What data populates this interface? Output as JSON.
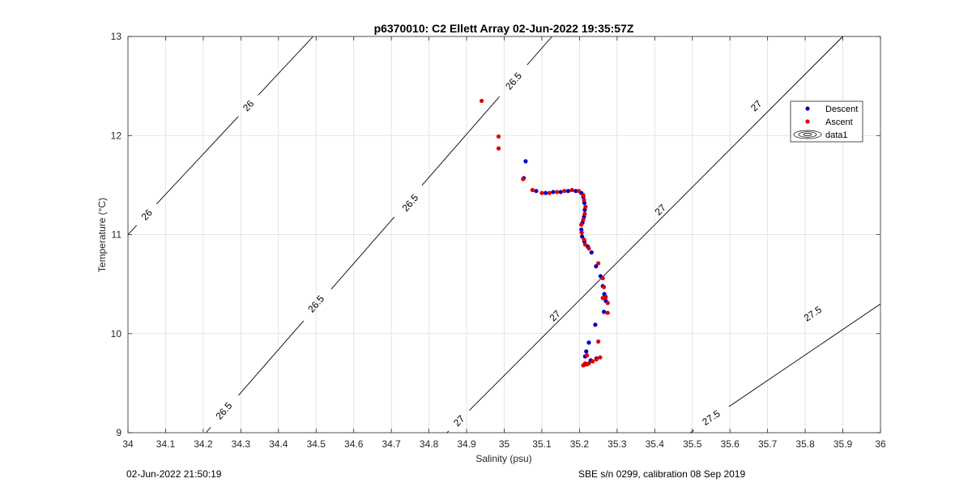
{
  "footer": {
    "left": "02-Jun-2022 21:50:19",
    "right": "SBE s/n 0299, calibration 08 Sep 2019"
  },
  "chart_data": {
    "type": "scatter",
    "title": "p6370010: C2 Ellett Array 02-Jun-2022 19:35:57Z",
    "xlabel": "Salinity (psu)",
    "ylabel": "Temperature (°C)",
    "xlim": [
      34,
      36
    ],
    "ylim": [
      9,
      13
    ],
    "xticks": [
      "34",
      "34.1",
      "34.2",
      "34.3",
      "34.4",
      "34.5",
      "34.6",
      "34.7",
      "34.8",
      "34.9",
      "35",
      "35.1",
      "35.2",
      "35.3",
      "35.4",
      "35.5",
      "35.6",
      "35.7",
      "35.8",
      "35.9",
      "36"
    ],
    "yticks": [
      "9",
      "10",
      "11",
      "12",
      "13"
    ],
    "grid": true,
    "legend_position": "top-right",
    "legend": [
      "Descent",
      "Ascent",
      "data1"
    ],
    "colors": {
      "descent": "#0000cc",
      "ascent": "#dd0000",
      "contour": "#000000",
      "grid": "#dddddd"
    },
    "series": [
      {
        "name": "Descent",
        "points": [
          [
            35.057,
            11.74
          ],
          [
            35.052,
            11.57
          ],
          [
            35.085,
            11.44
          ],
          [
            35.11,
            11.42
          ],
          [
            35.13,
            11.43
          ],
          [
            35.15,
            11.43
          ],
          [
            35.17,
            11.44
          ],
          [
            35.19,
            11.44
          ],
          [
            35.205,
            11.42
          ],
          [
            35.21,
            11.38
          ],
          [
            35.213,
            11.32
          ],
          [
            35.214,
            11.25
          ],
          [
            35.212,
            11.18
          ],
          [
            35.208,
            11.12
          ],
          [
            35.205,
            11.05
          ],
          [
            35.207,
            10.98
          ],
          [
            35.213,
            10.93
          ],
          [
            35.222,
            10.88
          ],
          [
            35.232,
            10.82
          ],
          [
            35.244,
            10.68
          ],
          [
            35.256,
            10.58
          ],
          [
            35.262,
            10.48
          ],
          [
            35.266,
            10.4
          ],
          [
            35.27,
            10.33
          ],
          [
            35.265,
            10.22
          ],
          [
            35.242,
            10.09
          ],
          [
            35.225,
            9.91
          ],
          [
            35.218,
            9.82
          ],
          [
            35.215,
            9.77
          ],
          [
            35.23,
            9.73
          ],
          [
            35.245,
            9.75
          ],
          [
            35.215,
            9.69
          ]
        ]
      },
      {
        "name": "Ascent",
        "points": [
          [
            34.94,
            12.35
          ],
          [
            34.985,
            11.99
          ],
          [
            34.985,
            11.87
          ],
          [
            35.05,
            11.56
          ],
          [
            35.075,
            11.45
          ],
          [
            35.1,
            11.42
          ],
          [
            35.12,
            11.42
          ],
          [
            35.14,
            11.43
          ],
          [
            35.16,
            11.44
          ],
          [
            35.18,
            11.45
          ],
          [
            35.198,
            11.44
          ],
          [
            35.21,
            11.4
          ],
          [
            35.212,
            11.35
          ],
          [
            35.216,
            11.28
          ],
          [
            35.214,
            11.21
          ],
          [
            35.21,
            11.15
          ],
          [
            35.205,
            11.1
          ],
          [
            35.206,
            11.02
          ],
          [
            35.212,
            10.95
          ],
          [
            35.215,
            10.9
          ],
          [
            35.225,
            10.86
          ],
          [
            35.25,
            10.71
          ],
          [
            35.262,
            10.56
          ],
          [
            35.265,
            10.47
          ],
          [
            35.27,
            10.37
          ],
          [
            35.275,
            10.31
          ],
          [
            35.262,
            10.36
          ],
          [
            35.275,
            10.21
          ],
          [
            35.25,
            9.92
          ],
          [
            35.22,
            9.78
          ],
          [
            35.215,
            9.7
          ],
          [
            35.21,
            9.68
          ],
          [
            35.225,
            9.7
          ],
          [
            35.235,
            9.72
          ],
          [
            35.245,
            9.74
          ],
          [
            35.255,
            9.76
          ],
          [
            35.22,
            9.69
          ]
        ]
      }
    ],
    "contours": [
      {
        "level": "26",
        "segments": [
          [
            [
              34.0,
              11.0
            ],
            [
              34.492,
              13.0
            ]
          ]
        ],
        "labels": [
          {
            "x": 34.05,
            "y": 11.2
          },
          {
            "x": 34.32,
            "y": 12.3
          }
        ]
      },
      {
        "level": "26.5",
        "segments": [
          [
            [
              34.207,
              9.0
            ],
            [
              35.127,
              13.0
            ]
          ]
        ],
        "labels": [
          {
            "x": 34.255,
            "y": 9.22
          },
          {
            "x": 34.5,
            "y": 10.3
          },
          {
            "x": 34.75,
            "y": 11.32
          },
          {
            "x": 35.025,
            "y": 12.55
          }
        ]
      },
      {
        "level": "27",
        "segments": [
          [
            [
              34.848,
              9.0
            ],
            [
              35.9,
              13.0
            ]
          ]
        ],
        "labels": [
          {
            "x": 34.88,
            "y": 9.12
          },
          {
            "x": 35.135,
            "y": 10.18
          },
          {
            "x": 35.415,
            "y": 11.25
          },
          {
            "x": 35.67,
            "y": 12.3
          }
        ]
      },
      {
        "level": "27.5",
        "segments": [
          [
            [
              35.495,
              9.0
            ],
            [
              36.0,
              10.3
            ]
          ]
        ],
        "labels": [
          {
            "x": 35.55,
            "y": 9.15
          },
          {
            "x": 35.82,
            "y": 10.2
          }
        ]
      }
    ]
  }
}
